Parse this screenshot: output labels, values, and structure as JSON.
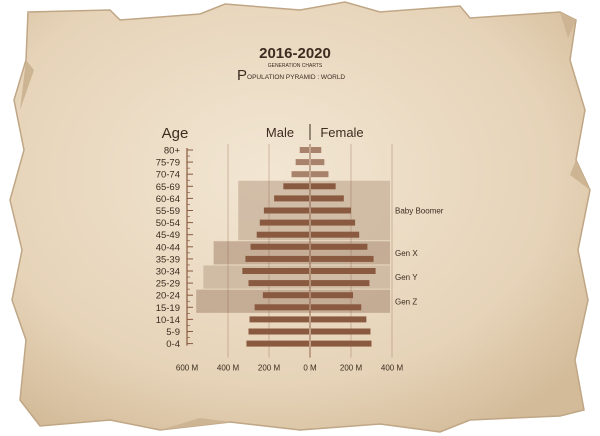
{
  "header": {
    "title": "2016-2020",
    "subtitle": "GENERATION CHARTS",
    "chart_heading_initial": "P",
    "chart_heading_rest": "OPULATION PYRAMID : WORLD"
  },
  "colors": {
    "paper": "#e7d6bd",
    "paper_edge": "#c9b394",
    "bar": "#8a5a40",
    "bar_light": "#a9826b",
    "band": "#c7b09a",
    "band_dark": "#b79c86",
    "text": "#3d2c20",
    "axis": "#8a5a40"
  },
  "chart_data": {
    "type": "bar",
    "orientation": "horizontal-pyramid",
    "ylabel": "Age",
    "categories": [
      "80+",
      "75-79",
      "70-74",
      "65-69",
      "60-64",
      "55-59",
      "50-54",
      "45-49",
      "40-44",
      "35-39",
      "30-34",
      "25-29",
      "20-24",
      "15-19",
      "10-14",
      "5-9",
      "0-4"
    ],
    "series": [
      {
        "name": "Male",
        "values": [
          50,
          70,
          90,
          130,
          175,
          225,
          245,
          260,
          290,
          315,
          330,
          300,
          230,
          270,
          295,
          300,
          310
        ]
      },
      {
        "name": "Female",
        "values": [
          55,
          70,
          90,
          125,
          165,
          200,
          220,
          240,
          280,
          310,
          320,
          290,
          210,
          250,
          275,
          295,
          300
        ]
      }
    ],
    "x_ticks": [
      "600 M",
      "400 M",
      "200 M",
      "0 M",
      "200 M",
      "400 M"
    ],
    "x_tick_values": [
      -600,
      -400,
      -200,
      0,
      200,
      400
    ],
    "xlim": [
      -600,
      400
    ],
    "highlight_bands": [
      {
        "label": "Baby Boomer",
        "from": "65-69",
        "to": "45-49",
        "extent": -350
      },
      {
        "label": "Gen X",
        "from": "40-44",
        "to": "35-39",
        "extent": -470
      },
      {
        "label": "Gen Y",
        "from": "30-34",
        "to": "25-29",
        "extent": -520
      },
      {
        "label": "Gen Z",
        "from": "20-24",
        "to": "15-19",
        "extent": -555
      }
    ],
    "legend_placement": "top"
  }
}
